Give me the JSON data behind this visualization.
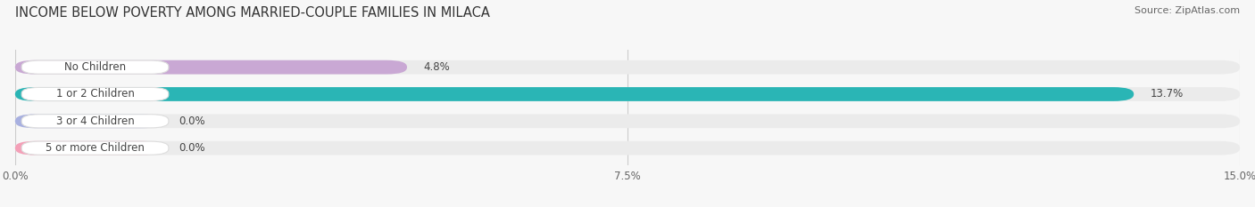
{
  "title": "INCOME BELOW POVERTY AMONG MARRIED-COUPLE FAMILIES IN MILACA",
  "source": "Source: ZipAtlas.com",
  "categories": [
    "No Children",
    "1 or 2 Children",
    "3 or 4 Children",
    "5 or more Children"
  ],
  "values": [
    4.8,
    13.7,
    0.0,
    0.0
  ],
  "bar_colors": [
    "#c9a8d4",
    "#2ab5b5",
    "#a8b0e0",
    "#f4a0b8"
  ],
  "bar_bg_color": "#ebebeb",
  "xlim": [
    0,
    15.0
  ],
  "xticks": [
    0.0,
    7.5,
    15.0
  ],
  "xtick_labels": [
    "0.0%",
    "7.5%",
    "15.0%"
  ],
  "title_fontsize": 10.5,
  "label_fontsize": 8.5,
  "value_fontsize": 8.5,
  "source_fontsize": 8.0,
  "background_color": "#f7f7f7",
  "bar_height": 0.52,
  "zero_bar_width": 1.8,
  "label_box_color": "#ffffff",
  "label_text_color": "#444444",
  "value_text_color": "#444444"
}
